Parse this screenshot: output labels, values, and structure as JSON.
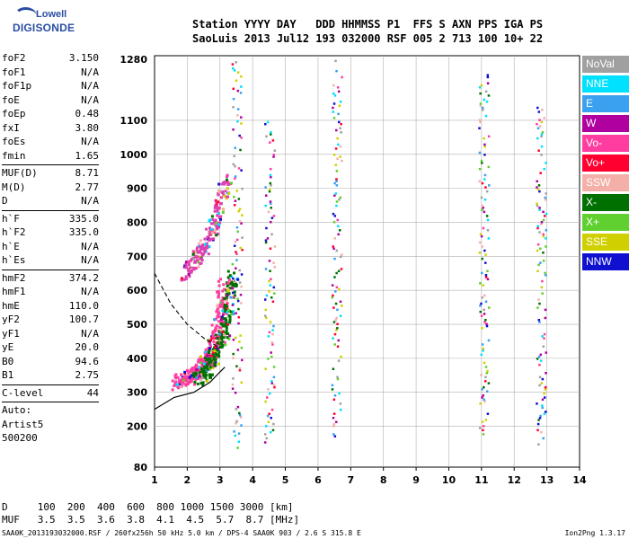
{
  "logo": {
    "line1": "Lowell",
    "line2": "DIGISONDE"
  },
  "header": {
    "row1": "Station YYYY DAY   DDD HHMMSS P1  FFS S AXN PPS IGA PS",
    "row2": "SaoLuis 2013 Jul12 193 032000 RSF 005 2 713 100 10+ 22"
  },
  "params": [
    {
      "name": "foF2",
      "value": "3.150"
    },
    {
      "name": "foF1",
      "value": "N/A"
    },
    {
      "name": "foF1p",
      "value": "N/A"
    },
    {
      "name": "foE",
      "value": "N/A"
    },
    {
      "name": "foEp",
      "value": "0.48"
    },
    {
      "name": "fxI",
      "value": "3.80"
    },
    {
      "name": "foEs",
      "value": "N/A"
    },
    {
      "name": "fmin",
      "value": "1.65"
    },
    {
      "sep": true
    },
    {
      "name": "MUF(D)",
      "value": "8.71"
    },
    {
      "name": "M(D)",
      "value": "2.77"
    },
    {
      "name": "D",
      "value": "N/A"
    },
    {
      "sep": true
    },
    {
      "name": "h`F",
      "value": "335.0"
    },
    {
      "name": "h`F2",
      "value": "335.0"
    },
    {
      "name": "h`E",
      "value": "N/A"
    },
    {
      "name": "h`Es",
      "value": "N/A"
    },
    {
      "sep": true
    },
    {
      "name": "hmF2",
      "value": "374.2"
    },
    {
      "name": "hmF1",
      "value": "N/A"
    },
    {
      "name": "hmE",
      "value": "110.0"
    },
    {
      "name": "yF2",
      "value": "100.7"
    },
    {
      "name": "yF1",
      "value": "N/A"
    },
    {
      "name": "yE",
      "value": "20.0"
    },
    {
      "name": "B0",
      "value": "94.6"
    },
    {
      "name": "B1",
      "value": "2.75"
    },
    {
      "sep": true
    },
    {
      "name": "C-level",
      "value": "44"
    },
    {
      "sep": true
    }
  ],
  "autoscale": {
    "line1": "Auto:",
    "line2": "Artist5",
    "line3": "500200"
  },
  "legend": [
    {
      "label": "NoVal",
      "color": "#a0a0a0"
    },
    {
      "label": "NNE",
      "color": "#00e0ff"
    },
    {
      "label": "E",
      "color": "#3aa0f0"
    },
    {
      "label": "W",
      "color": "#b000a0"
    },
    {
      "label": "Vo-",
      "color": "#ff3ca0"
    },
    {
      "label": "Vo+",
      "color": "#ff0030"
    },
    {
      "label": "SSW",
      "color": "#f4b0a8"
    },
    {
      "label": "X-",
      "color": "#007000"
    },
    {
      "label": "X+",
      "color": "#60d030"
    },
    {
      "label": "SSE",
      "color": "#d0d000"
    },
    {
      "label": "NNW",
      "color": "#1010d0"
    }
  ],
  "footer": {
    "d_line": "D     100  200  400  600  800 1000 1500 3000 [km]",
    "muf_line": "MUF   3.5  3.5  3.6  3.8  4.1  4.5  5.7  8.7 [MHz]",
    "source": "SAA0K_2013193032000.RSF / 260fx256h 50 kHz 5.0 km / DPS-4 SAA0K 903 / 2.6 S 315.8 E",
    "version": "Ion2Png 1.3.17"
  },
  "chart_data": {
    "type": "scatter",
    "title": "",
    "xlabel": "",
    "ylabel": "",
    "xlim": [
      1,
      14
    ],
    "ylim": [
      80,
      1290
    ],
    "x_ticks": [
      1,
      2,
      3,
      4,
      5,
      6,
      7,
      8,
      9,
      10,
      11,
      12,
      13,
      14
    ],
    "y_ticks": [
      80,
      200,
      300,
      400,
      500,
      600,
      700,
      800,
      900,
      1000,
      1100,
      1280
    ],
    "grid": true,
    "traces": [
      {
        "name": "trace-O",
        "color": "#ff3ca0",
        "x": [
          1.65,
          1.9,
          2.1,
          2.3,
          2.5,
          2.7,
          2.85,
          3.0,
          3.1
        ],
        "y": [
          330,
          345,
          355,
          370,
          390,
          420,
          470,
          540,
          640
        ]
      },
      {
        "name": "trace-X",
        "color": "#007000",
        "x": [
          2.3,
          2.5,
          2.7,
          2.9,
          3.1,
          3.25,
          3.35
        ],
        "y": [
          340,
          360,
          390,
          430,
          490,
          570,
          650
        ]
      },
      {
        "name": "trace-multihop",
        "color": "#e040b0",
        "x": [
          1.9,
          2.2,
          2.5,
          2.8,
          3.0,
          3.15
        ],
        "y": [
          650,
          690,
          730,
          790,
          860,
          930
        ]
      },
      {
        "name": "profile",
        "color": "#000000",
        "x": [
          1.0,
          1.6,
          2.2,
          2.7,
          3.0,
          3.15
        ],
        "y": [
          250,
          285,
          300,
          330,
          360,
          374.2
        ]
      },
      {
        "name": "profile-dashed",
        "color": "#000000",
        "x": [
          1.0,
          1.5,
          2.0,
          2.5,
          3.0
        ],
        "y": [
          650,
          560,
          500,
          460,
          430
        ]
      }
    ]
  }
}
